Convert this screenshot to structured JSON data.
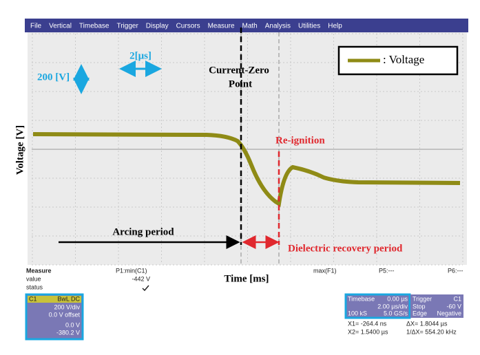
{
  "menu": [
    "File",
    "Vertical",
    "Timebase",
    "Trigger",
    "Display",
    "Cursors",
    "Measure",
    "Math",
    "Analysis",
    "Utilities",
    "Help"
  ],
  "annotations": {
    "volt_scale": "200 [V]",
    "time_scale": "2[μs]",
    "y_label": "Voltage [V]",
    "legend": ": Voltage",
    "czp_line1": "Current-Zero",
    "czp_line2": "Point",
    "reignition": "Re-ignition",
    "arcing": "Arcing period",
    "dielectric": "Dielectric recovery period",
    "x_label": "Time [ms]"
  },
  "measure": {
    "title": "Measure",
    "row1": "value",
    "row2": "status",
    "p1": "P1:min(C1)",
    "p1_value": "-442 V",
    "max": "max(F1)",
    "p5": "P5:---",
    "p6": "P6:---"
  },
  "channel": {
    "name": "C1",
    "flags": "BwL DC",
    "scale": "200 V/div",
    "offset": "0.0 V offset",
    "v1": "0.0 V",
    "v2": "-380.2 V"
  },
  "timebase": {
    "label": "Timebase",
    "delay": "0.00 µs",
    "scale": "2.00 µs/div",
    "samples": "100 kS",
    "rate": "5.0 GS/s"
  },
  "trigger": {
    "label": "Trigger",
    "ch": "C1",
    "mode": "Stop",
    "level": "-60 V",
    "type": "Edge",
    "slope": "Negative"
  },
  "cursors": {
    "x1": "X1= -264.4 ns",
    "dx": "ΔX= 1.8044 µs",
    "x2": "X2= 1.5400 µs",
    "inv": "1/ΔX= 554.20 kHz"
  }
}
